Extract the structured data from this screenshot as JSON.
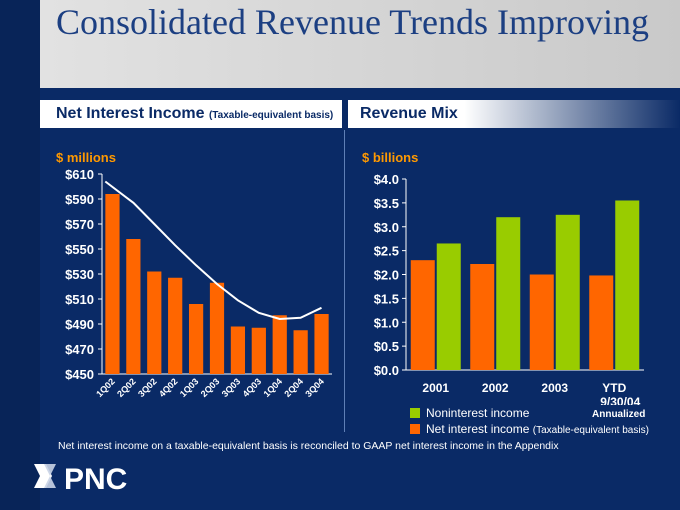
{
  "slide_title": "Consolidated Revenue Trends Improving",
  "colors": {
    "orange": "#ff6600",
    "green": "#99cc00",
    "navy": "#0a2a66"
  },
  "left_panel": {
    "heading": "Net Interest Income",
    "heading_sub": "(Taxable-equivalent basis)",
    "unit_label": "$ millions"
  },
  "right_panel": {
    "heading": "Revenue Mix",
    "unit_label": "$ billions",
    "legend": {
      "nonint": "Noninterest income",
      "netint": "Net interest income",
      "netint_note": "(Taxable-equivalent basis)"
    },
    "annualized": "Annualized"
  },
  "footnote": "Net interest income on a taxable-equivalent basis is reconciled to GAAP net interest income in the Appendix",
  "logo_text": "PNC",
  "chart_data": [
    {
      "type": "bar",
      "title": "Net Interest Income",
      "ylabel": "$ millions",
      "ylim": [
        450,
        610
      ],
      "yticks": [
        "$610",
        "$590",
        "$570",
        "$550",
        "$530",
        "$510",
        "$490",
        "$470",
        "$450"
      ],
      "ytick_values": [
        610,
        590,
        570,
        550,
        530,
        510,
        490,
        470,
        450
      ],
      "categories": [
        "1Q02",
        "2Q02",
        "3Q02",
        "4Q02",
        "1Q03",
        "2Q03",
        "3Q03",
        "4Q03",
        "1Q04",
        "2Q04",
        "3Q04"
      ],
      "values": [
        594,
        558,
        532,
        527,
        506,
        523,
        488,
        487,
        497,
        485,
        498
      ],
      "trendline": [
        604,
        587,
        570,
        553,
        537,
        522,
        509,
        499,
        494,
        495,
        503
      ]
    },
    {
      "type": "bar",
      "title": "Revenue Mix",
      "ylabel": "$ billions",
      "ylim": [
        0,
        4
      ],
      "yticks": [
        "$4.0",
        "$3.5",
        "$3.0",
        "$2.5",
        "$2.0",
        "$1.5",
        "$1.0",
        "$0.5",
        "$0.0"
      ],
      "ytick_values": [
        4,
        3.5,
        3,
        2.5,
        2,
        1.5,
        1,
        0.5,
        0
      ],
      "categories": [
        "2001",
        "2002",
        "2003",
        "YTD\n9/30/04"
      ],
      "category_lines": [
        [
          "2001"
        ],
        [
          "2002"
        ],
        [
          "2003"
        ],
        [
          "YTD",
          "9/30/04"
        ]
      ],
      "series": [
        {
          "name": "Net interest income",
          "values": [
            2.3,
            2.22,
            2.0,
            1.98
          ]
        },
        {
          "name": "Noninterest income",
          "values": [
            2.65,
            3.2,
            3.25,
            3.55
          ]
        }
      ]
    }
  ]
}
